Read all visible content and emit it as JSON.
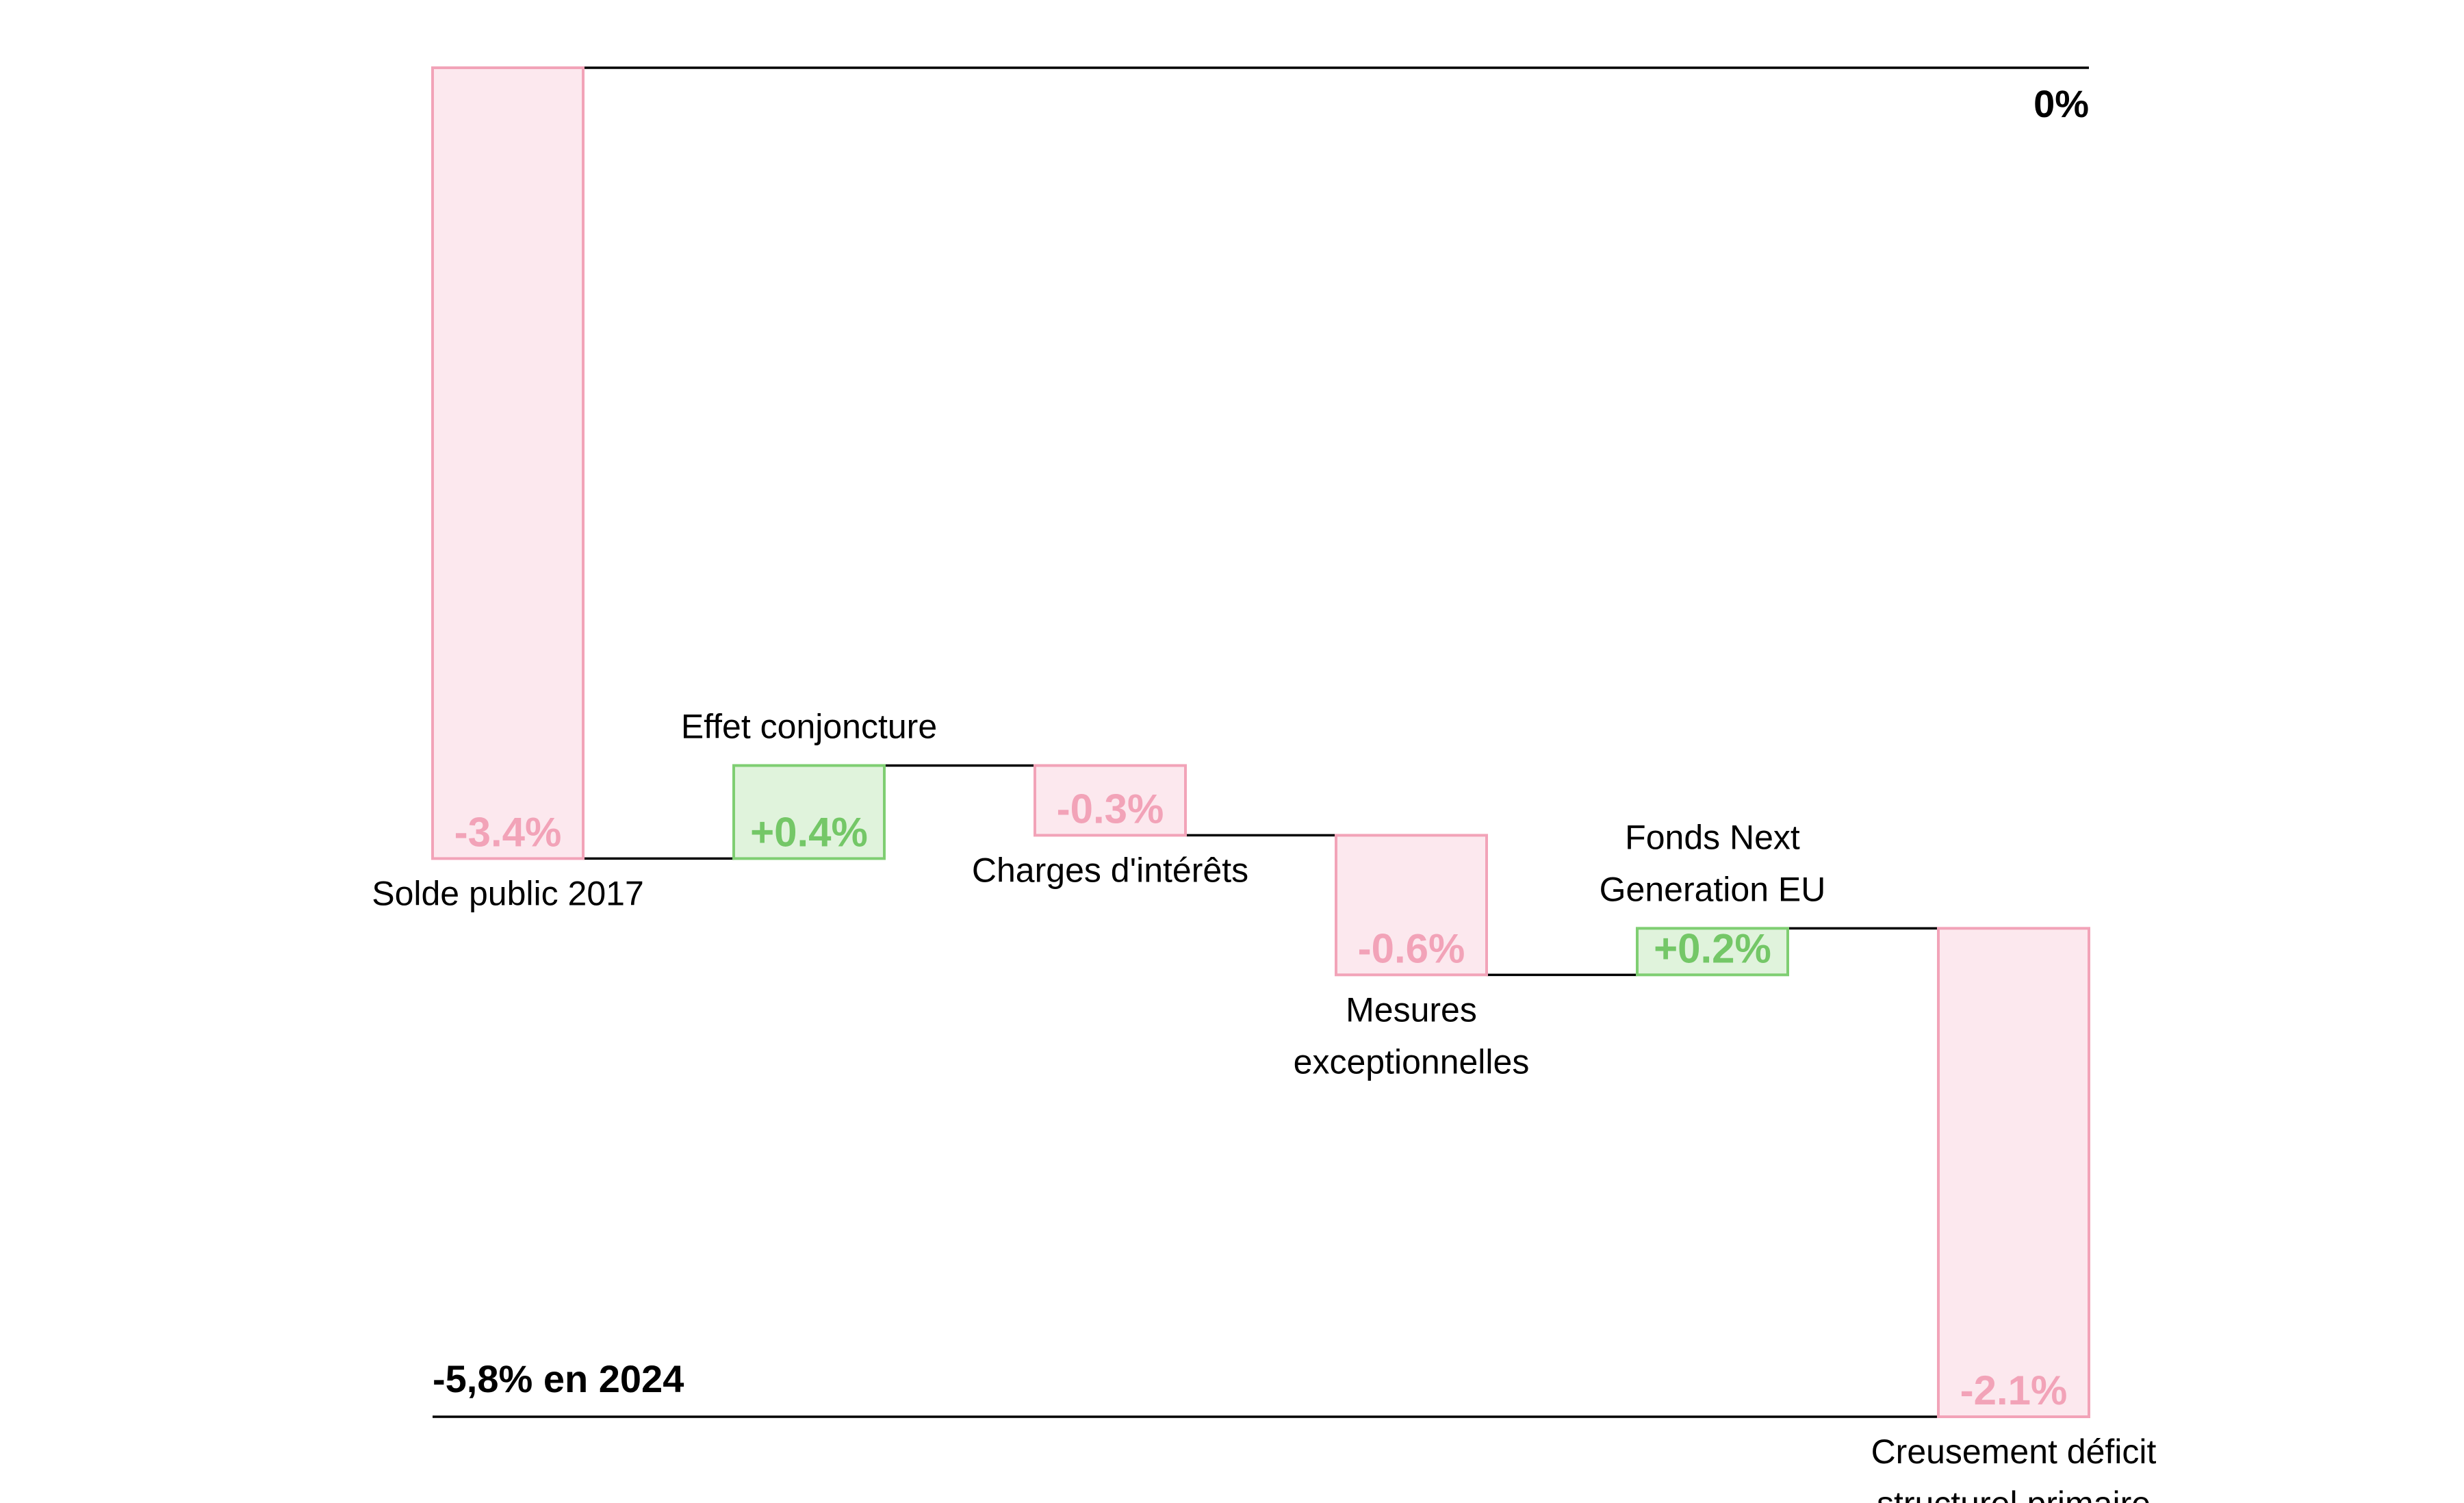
{
  "chart_data": {
    "type": "waterfall",
    "unit": "%",
    "steps": [
      {
        "category": [
          "Solde public 2017"
        ],
        "value": -3.4,
        "label": "-3.4%",
        "label_position": "below"
      },
      {
        "category": [
          "Effet conjoncture"
        ],
        "value": 0.4,
        "label": "+0.4%",
        "label_position": "above"
      },
      {
        "category": [
          "Charges d'intérêts"
        ],
        "value": -0.3,
        "label": "-0.3%",
        "label_position": "below"
      },
      {
        "category": [
          "Mesures",
          "exceptionnelles"
        ],
        "value": -0.6,
        "label": "-0.6%",
        "label_position": "below"
      },
      {
        "category": [
          "Fonds Next",
          "Generation EU"
        ],
        "value": 0.2,
        "label": "+0.2%",
        "label_position": "above"
      },
      {
        "category": [
          "Creusement déficit",
          "structurel primaire"
        ],
        "value": -2.1,
        "label": "-2.1%",
        "label_position": "below"
      }
    ],
    "start_value": 0,
    "end_value": -5.8,
    "start_label": "0%",
    "end_label": "-5,8% en 2024",
    "ylim": [
      -5.8,
      0
    ],
    "colors": {
      "negative_fill": "#fce8ee",
      "negative_stroke": "#f2a3b8",
      "positive_fill": "#e0f3dc",
      "positive_stroke": "#7fce72"
    },
    "grid": false,
    "legend": "none"
  }
}
